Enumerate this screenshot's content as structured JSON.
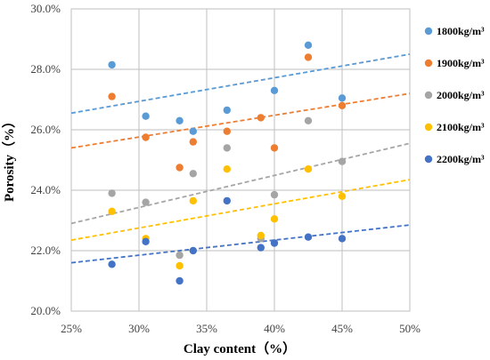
{
  "chart_data": {
    "type": "scatter",
    "xlabel": "Clay content（%）",
    "ylabel": "Porosity（%）",
    "xlim": [
      25,
      50
    ],
    "ylim": [
      20,
      30
    ],
    "x_ticks": [
      25,
      30,
      35,
      40,
      45,
      50
    ],
    "y_ticks": [
      20,
      22,
      24,
      26,
      28,
      30
    ],
    "x_tick_labels": [
      "25%",
      "30%",
      "35%",
      "40%",
      "45%",
      "50%"
    ],
    "y_tick_labels": [
      "20.0%",
      "22.0%",
      "24.0%",
      "26.0%",
      "28.0%",
      "30.0%"
    ],
    "grid": true,
    "legend_position": "right",
    "trendline": "linear, dashed",
    "series": [
      {
        "name": "1800kg/m³",
        "color": "#5B9BD5",
        "points": [
          [
            28,
            28.15
          ],
          [
            30.5,
            26.45
          ],
          [
            33,
            26.3
          ],
          [
            34,
            25.95
          ],
          [
            36.5,
            26.65
          ],
          [
            40,
            27.3
          ],
          [
            42.5,
            28.8
          ],
          [
            45,
            27.05
          ]
        ],
        "trend": [
          [
            25,
            26.55
          ],
          [
            50,
            28.5
          ]
        ]
      },
      {
        "name": "1900kg/m³",
        "color": "#ED7D31",
        "points": [
          [
            28,
            27.1
          ],
          [
            30.5,
            25.75
          ],
          [
            33,
            24.75
          ],
          [
            34,
            25.6
          ],
          [
            36.5,
            25.95
          ],
          [
            39,
            26.4
          ],
          [
            40,
            25.4
          ],
          [
            42.5,
            28.4
          ],
          [
            45,
            26.8
          ]
        ],
        "trend": [
          [
            25,
            25.4
          ],
          [
            50,
            27.2
          ]
        ]
      },
      {
        "name": "2000kg/m³",
        "color": "#A5A5A5",
        "points": [
          [
            28,
            23.9
          ],
          [
            30.5,
            23.6
          ],
          [
            33,
            21.85
          ],
          [
            34,
            24.55
          ],
          [
            36.5,
            25.4
          ],
          [
            39,
            22.4
          ],
          [
            40,
            23.85
          ],
          [
            42.5,
            26.3
          ],
          [
            45,
            24.95
          ]
        ],
        "trend": [
          [
            25,
            22.9
          ],
          [
            50,
            25.55
          ]
        ]
      },
      {
        "name": "2100kg/m³",
        "color": "#FFC000",
        "points": [
          [
            28,
            23.3
          ],
          [
            30.5,
            22.4
          ],
          [
            33,
            21.5
          ],
          [
            34,
            23.65
          ],
          [
            36.5,
            24.7
          ],
          [
            39,
            22.5
          ],
          [
            40,
            23.05
          ],
          [
            42.5,
            24.7
          ],
          [
            45,
            23.8
          ]
        ],
        "trend": [
          [
            25,
            22.35
          ],
          [
            50,
            24.35
          ]
        ]
      },
      {
        "name": "2200kg/m³",
        "color": "#4472C4",
        "points": [
          [
            28,
            21.55
          ],
          [
            30.5,
            22.3
          ],
          [
            33,
            21.0
          ],
          [
            34,
            22.0
          ],
          [
            36.5,
            23.65
          ],
          [
            39,
            22.1
          ],
          [
            40,
            22.25
          ],
          [
            42.5,
            22.45
          ],
          [
            45,
            22.4
          ]
        ],
        "trend": [
          [
            25,
            21.6
          ],
          [
            50,
            22.85
          ]
        ]
      }
    ]
  }
}
